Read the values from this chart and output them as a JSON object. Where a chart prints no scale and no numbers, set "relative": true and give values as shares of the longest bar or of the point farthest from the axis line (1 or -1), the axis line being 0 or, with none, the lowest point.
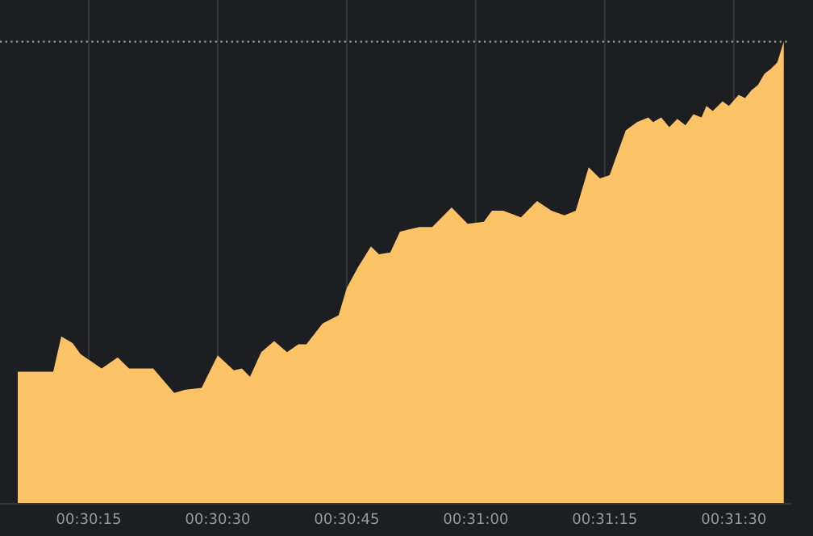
{
  "chart_data": {
    "type": "area",
    "relative": true,
    "grid": "x",
    "legend": false,
    "xlim": [
      0.501302,
      0.526823
    ],
    "xticks": [
      {
        "value": 0.504167,
        "label": "00:30:15"
      },
      {
        "value": 0.508333,
        "label": "00:30:30"
      },
      {
        "value": 0.5125,
        "label": "00:30:45"
      },
      {
        "value": 0.516667,
        "label": "00:31:00"
      },
      {
        "value": 0.520833,
        "label": "00:31:15"
      },
      {
        "value": 0.525,
        "label": "00:31:30"
      }
    ],
    "ref_lines": [
      {
        "axis": "y",
        "value": 1,
        "label": null,
        "color": "#9a9ba0",
        "line_style": "dotted"
      }
    ],
    "series": [
      {
        "color": "#fcc266",
        "x": [
          0.501875,
          0.503021,
          0.503281,
          0.503646,
          0.503906,
          0.504583,
          0.505104,
          0.505469,
          0.505886,
          0.50625,
          0.506928,
          0.507292,
          0.507813,
          0.508333,
          0.508854,
          0.509114,
          0.509375,
          0.509739,
          0.510156,
          0.510572,
          0.510938,
          0.511197,
          0.511719,
          0.512239,
          0.5125,
          0.512864,
          0.513281,
          0.513542,
          0.513906,
          0.514219,
          0.514844,
          0.515261,
          0.515886,
          0.516406,
          0.516928,
          0.517188,
          0.517553,
          0.518125,
          0.518646,
          0.519114,
          0.519531,
          0.519896,
          0.520313,
          0.520678,
          0.520989,
          0.521511,
          0.521875,
          0.522239,
          0.522396,
          0.522656,
          0.522917,
          0.523178,
          0.523438,
          0.523697,
          0.523958,
          0.524114,
          0.524322,
          0.524636,
          0.524844,
          0.525156,
          0.525364,
          0.525572,
          0.525781,
          0.525989,
          0.526197,
          0.526406,
          0.526614
        ],
        "values": [
          0.286,
          0.286,
          0.362,
          0.348,
          0.324,
          0.293,
          0.317,
          0.293,
          0.293,
          0.293,
          0.24,
          0.247,
          0.251,
          0.321,
          0.289,
          0.293,
          0.275,
          0.328,
          0.352,
          0.328,
          0.345,
          0.345,
          0.39,
          0.408,
          0.467,
          0.512,
          0.557,
          0.54,
          0.544,
          0.589,
          0.599,
          0.599,
          0.641,
          0.606,
          0.61,
          0.634,
          0.634,
          0.62,
          0.655,
          0.634,
          0.624,
          0.634,
          0.728,
          0.704,
          0.711,
          0.808,
          0.826,
          0.836,
          0.826,
          0.836,
          0.815,
          0.833,
          0.819,
          0.843,
          0.836,
          0.861,
          0.85,
          0.871,
          0.861,
          0.885,
          0.878,
          0.895,
          0.906,
          0.93,
          0.941,
          0.955,
          1
        ]
      }
    ]
  }
}
